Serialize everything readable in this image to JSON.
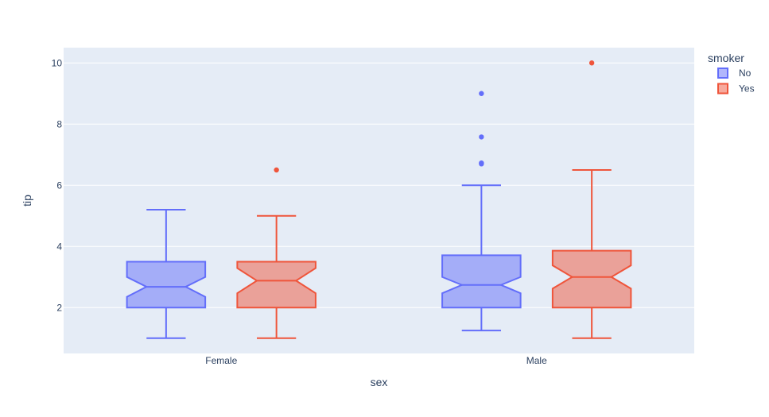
{
  "chart_data": {
    "type": "box",
    "notched": true,
    "title": "",
    "xlabel": "sex",
    "ylabel": "tip",
    "categories": [
      "Female",
      "Male"
    ],
    "ylim": [
      0.5,
      10.5
    ],
    "yticks": [
      2,
      4,
      6,
      8,
      10
    ],
    "grid": true,
    "legend": {
      "title": "smoker",
      "placement": "top-right"
    },
    "colors": {
      "plot_bg": "#e5ecf6",
      "grid": "#ffffff",
      "text": "#2a3f5f"
    },
    "series": [
      {
        "name": "No",
        "color": "#636efa",
        "fill": "rgba(99,110,250,0.5)",
        "boxes": [
          {
            "category": "Female",
            "min": 1.0,
            "q1": 2.0,
            "median": 2.68,
            "q3": 3.5,
            "max": 5.2,
            "notch_low": 2.35,
            "notch_high": 3.0,
            "outliers": []
          },
          {
            "category": "Male",
            "min": 1.25,
            "q1": 2.0,
            "median": 2.74,
            "q3": 3.71,
            "max": 6.0,
            "notch_low": 2.47,
            "notch_high": 3.0,
            "outliers": [
              6.7,
              6.73,
              7.58,
              9.0
            ]
          }
        ]
      },
      {
        "name": "Yes",
        "color": "#ef553b",
        "fill": "rgba(239,85,59,0.5)",
        "boxes": [
          {
            "category": "Female",
            "min": 1.0,
            "q1": 2.0,
            "median": 2.88,
            "q3": 3.5,
            "max": 5.0,
            "notch_low": 2.47,
            "notch_high": 3.29,
            "outliers": [
              6.5
            ]
          },
          {
            "category": "Male",
            "min": 1.0,
            "q1": 2.0,
            "median": 3.0,
            "q3": 3.86,
            "max": 6.5,
            "notch_low": 2.62,
            "notch_high": 3.38,
            "outliers": [
              10.0
            ]
          }
        ]
      }
    ]
  }
}
